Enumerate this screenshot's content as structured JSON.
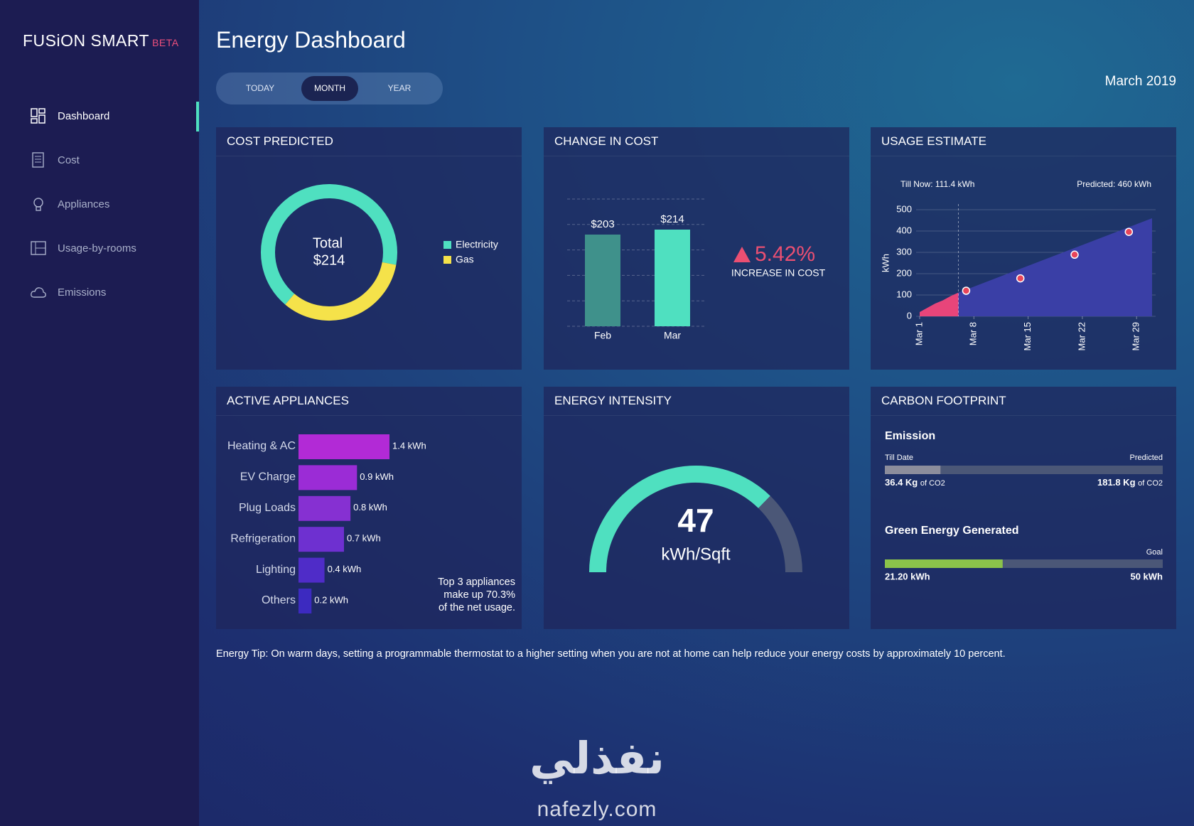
{
  "sidebar": {
    "brand": "FUSiON SMART",
    "badge": "BETA",
    "active_item": 0,
    "items": [
      "Dashboard",
      "Cost",
      "Appliances",
      "Usage-by-rooms",
      "Emissions"
    ]
  },
  "header": {
    "title": "Energy Dashboard",
    "tabs": [
      "TODAY",
      "MONTH",
      "YEAR"
    ],
    "active_tab": 1,
    "date": "March 2019"
  },
  "cost_predicted": {
    "title": "COST PREDICTED",
    "chart_data": {
      "type": "donut",
      "center_label": "Total",
      "total_label": "$214",
      "series": [
        {
          "name": "Electricity",
          "color": "#4fe0c0",
          "value": 143
        },
        {
          "name": "Gas",
          "color": "#f5e24a",
          "value": 71
        }
      ]
    }
  },
  "change_in_cost": {
    "title": "CHANGE IN COST",
    "chart_data": {
      "type": "bar",
      "categories": [
        "Feb",
        "Mar"
      ],
      "values": [
        203,
        214
      ],
      "value_labels": [
        "$203",
        "$214"
      ],
      "colors": [
        "#3f918b",
        "#4fe0c0"
      ]
    },
    "change_label": "5.42%",
    "change_caption": "INCREASE IN COST"
  },
  "usage_estimate": {
    "title": "USAGE ESTIMATE",
    "chart_data": {
      "type": "area",
      "till_now_label": "Till Now: 111.4 kWh",
      "predicted_label": "Predicted: 460 kWh",
      "y_label": "kWh",
      "ylim": [
        0,
        500
      ],
      "yticks": [
        0,
        100,
        200,
        300,
        400,
        500
      ],
      "xlim": [
        1,
        31
      ],
      "xticks": [
        {
          "value": 1,
          "label": "Mar 1"
        },
        {
          "value": 8,
          "label": "Mar 8"
        },
        {
          "value": 15,
          "label": "Mar 15"
        },
        {
          "value": 22,
          "label": "Mar 22"
        },
        {
          "value": 29,
          "label": "Mar 29"
        }
      ],
      "grid": true,
      "actual": {
        "color": "#e8457a",
        "x": [
          1,
          2,
          3,
          4,
          5,
          6
        ],
        "values": [
          20,
          40,
          60,
          75,
          95,
          111.4
        ]
      },
      "forecast": {
        "color": "#3a3fa6",
        "x": [
          6,
          31
        ],
        "values": [
          111.4,
          460
        ]
      },
      "points": {
        "color": "#e8455a",
        "x": [
          7,
          14,
          21,
          28
        ],
        "values": [
          120,
          178,
          289,
          396
        ]
      }
    }
  },
  "active_appliances": {
    "title": "ACTIVE APPLIANCES",
    "chart_data": {
      "type": "hbar",
      "categories": [
        "Heating & AC",
        "EV Charge",
        "Plug Loads",
        "Refrigeration",
        "Lighting",
        "Others"
      ],
      "values": [
        1.4,
        0.9,
        0.8,
        0.7,
        0.4,
        0.2
      ],
      "value_labels": [
        "1.4 kWh",
        "0.9 kWh",
        "0.8 kWh",
        "0.7 kWh",
        "0.4 kWh",
        "0.2 kWh"
      ],
      "colors": [
        "#b22ad6",
        "#9b2cd6",
        "#8630d2",
        "#6e30d0",
        "#4f2cc8",
        "#3c2ac0"
      ]
    },
    "note": [
      "Top 3 appliances",
      "make up 70.3%",
      "of the net usage."
    ]
  },
  "energy_intensity": {
    "title": "ENERGY INTENSITY",
    "chart_data": {
      "type": "gauge",
      "value": 47,
      "unit": "kWh/Sqft",
      "range": [
        0,
        63
      ],
      "color": "#4fe0c0",
      "track_color": "#4b5777"
    }
  },
  "carbon_footprint": {
    "title": "CARBON FOOTPRINT",
    "emission": {
      "title": "Emission",
      "till_label": "Till Date",
      "predicted_label": "Predicted",
      "till_value": 36.4,
      "till_value_label": "36.4 Kg",
      "predicted_value": 181.8,
      "predicted_value_label": "181.8 Kg",
      "unit": "of CO2",
      "color": "#8c8d9c"
    },
    "green": {
      "title": "Green Energy Generated",
      "goal_label": "Goal",
      "value": 21.2,
      "value_label": "21.20 kWh",
      "goal": 50,
      "goal_value_label": "50 kWh",
      "color": "#8bc34a"
    }
  },
  "tip": {
    "label": "Energy Tip:",
    "text": "On warm days, setting a programmable thermostat to a higher setting when you are not at home can help reduce your energy costs by approximately 10 percent."
  },
  "watermark": {
    "logo": "نفذلي",
    "site": "nafezly.com"
  }
}
